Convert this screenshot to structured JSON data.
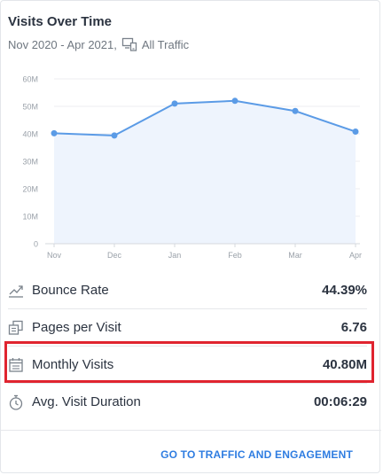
{
  "widget": {
    "title": "Visits Over Time",
    "date_range": "Nov 2020 - Apr 2021,",
    "traffic_filter": "All Traffic"
  },
  "chart_data": {
    "type": "area",
    "categories": [
      "Nov",
      "Dec",
      "Jan",
      "Feb",
      "Mar",
      "Apr"
    ],
    "values": [
      40.2,
      39.4,
      51.0,
      52.0,
      48.3,
      40.8
    ],
    "y_ticks": [
      "0",
      "10M",
      "20M",
      "30M",
      "40M",
      "50M",
      "60M"
    ],
    "ylim": [
      0,
      60
    ],
    "grid": true,
    "line_color": "#5b9be6",
    "fill_color": "#eef4fd"
  },
  "metrics": [
    {
      "label": "Bounce Rate",
      "value": "44.39%",
      "icon": "trend-icon"
    },
    {
      "label": "Pages per Visit",
      "value": "6.76",
      "icon": "pages-icon"
    },
    {
      "label": "Monthly Visits",
      "value": "40.80M",
      "icon": "calendar-icon"
    },
    {
      "label": "Avg. Visit Duration",
      "value": "00:06:29",
      "icon": "stopwatch-icon"
    }
  ],
  "cta": {
    "label": "GO TO TRAFFIC AND ENGAGEMENT"
  },
  "colors": {
    "accent": "#2f7de1",
    "highlight": "#e0242f"
  }
}
